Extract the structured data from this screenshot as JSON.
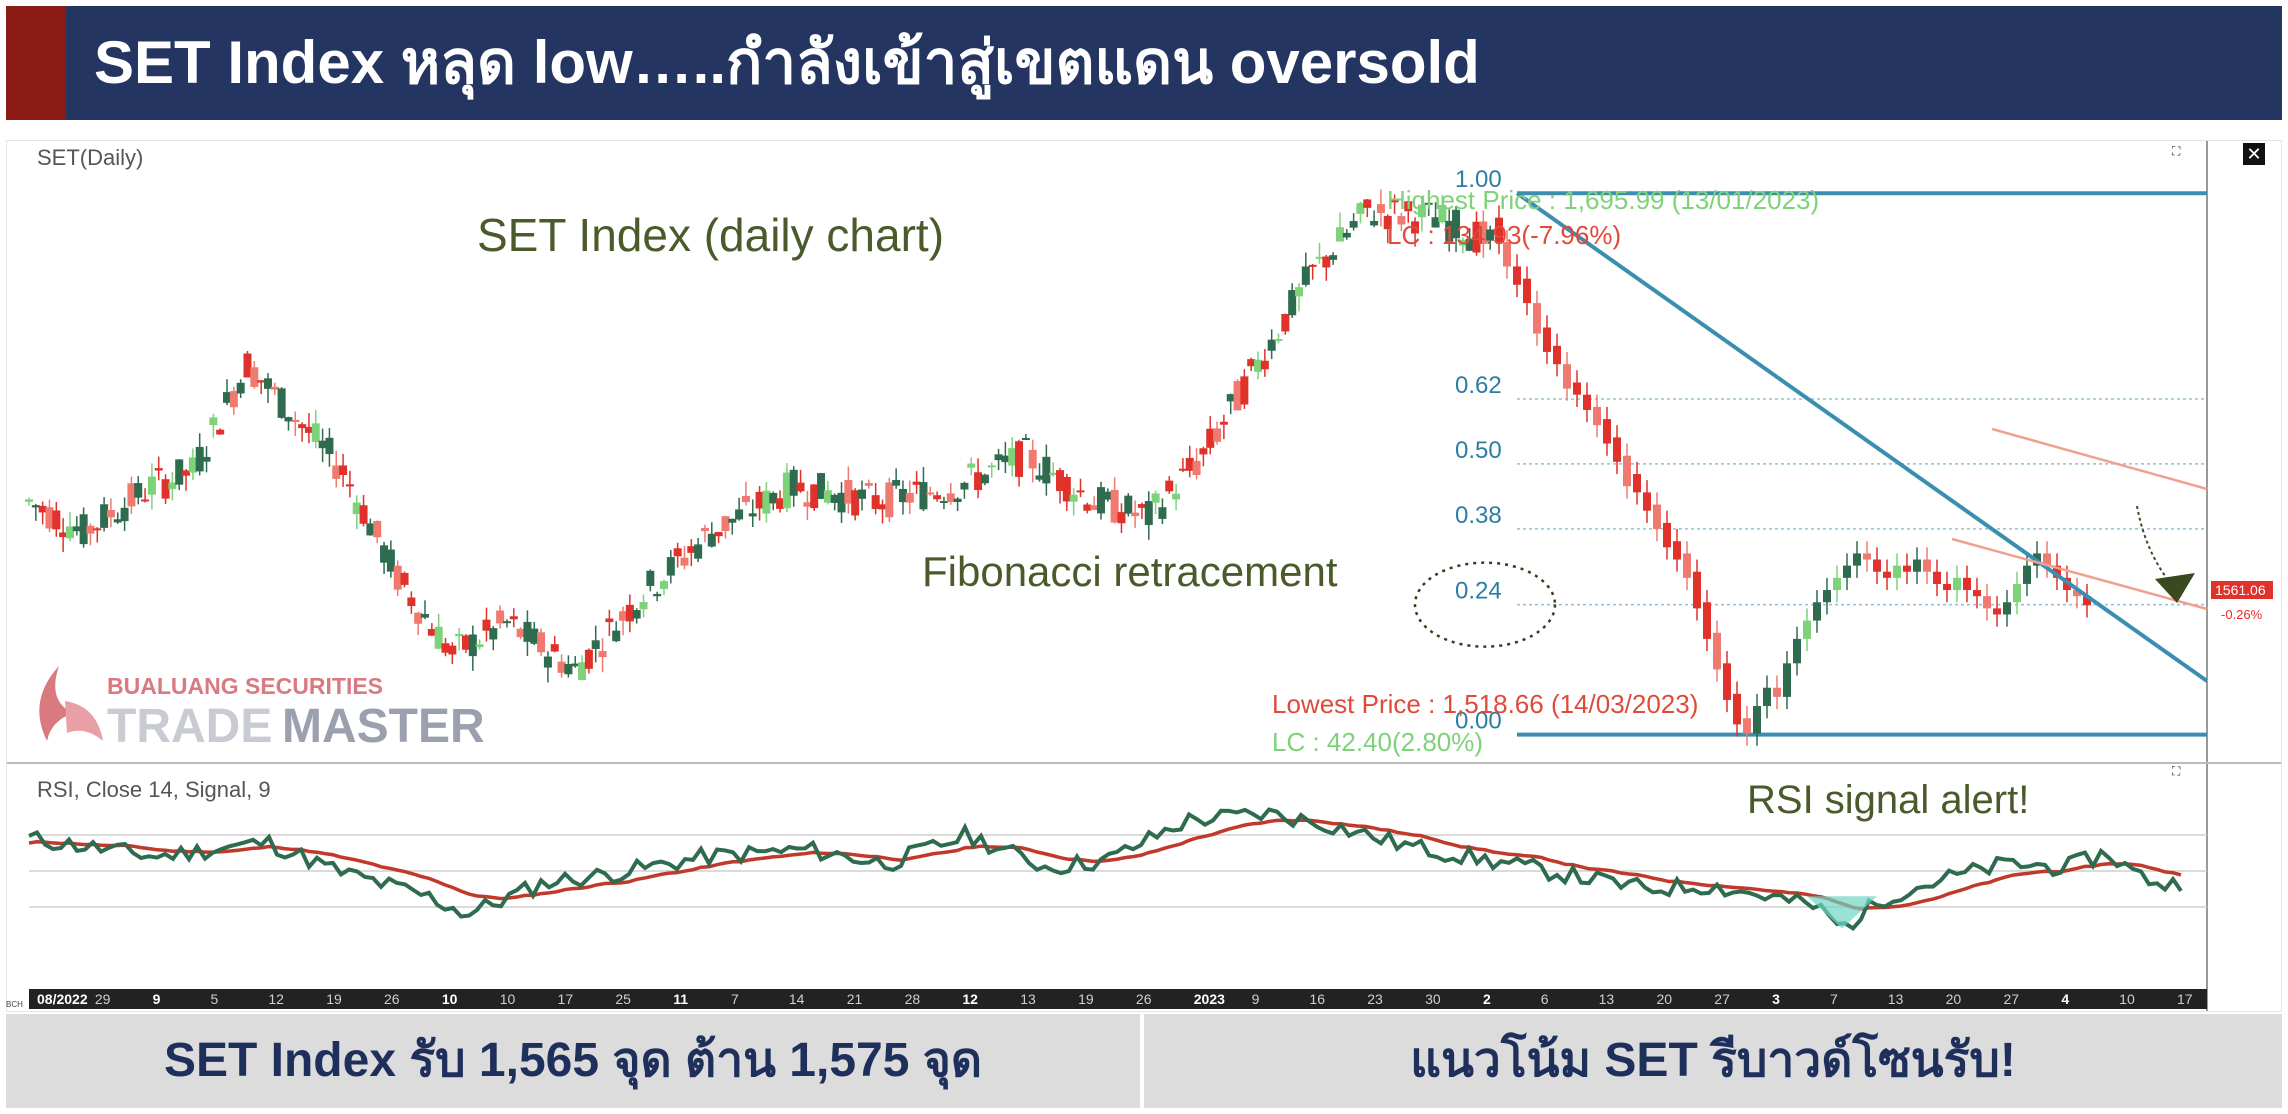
{
  "header": {
    "title": "SET Index หลุด low…..กำลังเข้าสู่เขตแดน oversold"
  },
  "chart": {
    "price_panel_label": "SET(Daily)",
    "rsi_panel_label": "RSI, Close 14, Signal, 9",
    "close_symbol": "✕",
    "expand_symbol": "⛶",
    "bottom_left_tag": "BCH"
  },
  "annotations": {
    "main_label": "SET Index (daily chart)",
    "fib_label": "Fibonacci retracement",
    "rsi_alert": "RSI signal alert!",
    "highest_price": "Highest Price : 1,695.99 (13/01/2023)",
    "highest_lc": "LC : 134.93(-7.96%)",
    "lowest_price": "Lowest Price : 1,518.66 (14/03/2023)",
    "lowest_lc": "LC : 42.40(2.80%)",
    "last_price": "1561.06",
    "last_change": "-0.26%"
  },
  "logo": {
    "line1": "BUALUANG SECURITIES",
    "line2_a": "TRADE",
    "line2_b": "MASTER"
  },
  "footer": {
    "left": "SET Index รับ 1,565 จุด ต้าน 1,575 จุด",
    "right": "แนวโน้ม SET รีบาวด์โซนรับ!"
  },
  "colors": {
    "header_bg": "#233560",
    "header_accent": "#8b1b14",
    "up_candle": "#2e6b4f",
    "up_candle_light": "#7ed27a",
    "down_candle": "#e0312a",
    "down_candle_light": "#f07a70",
    "trendline": "#3a8fb0",
    "channel": "#f0a090",
    "rsi_line": "#2e6b4f",
    "rsi_signal": "#c0392b",
    "fib_text": "#2a7fa0"
  },
  "chart_data": {
    "type": "candlestick",
    "title": "SET Index (daily chart)",
    "x_tick_labels": [
      "08/2022",
      "29",
      "9",
      "5",
      "12",
      "19",
      "26",
      "10",
      "10",
      "17",
      "25",
      "11",
      "7",
      "14",
      "21",
      "28",
      "12",
      "13",
      "19",
      "26",
      "2023",
      "9",
      "16",
      "23",
      "30",
      "2",
      "6",
      "13",
      "20",
      "27",
      "3",
      "7",
      "13",
      "20",
      "27",
      "4",
      "10",
      "17"
    ],
    "fibonacci": [
      {
        "level": "1.00",
        "price": 1695.99
      },
      {
        "level": "0.62",
        "price": null
      },
      {
        "level": "0.50",
        "price": null
      },
      {
        "level": "0.38",
        "price": null
      },
      {
        "level": "0.24",
        "price": null
      },
      {
        "level": "0.00",
        "price": 1518.66
      }
    ],
    "highest_price": 1695.99,
    "lowest_price": 1518.66,
    "last_price": 1561.06,
    "last_change_pct": -0.26,
    "y_range": [
      1510,
      1700
    ],
    "rsi": {
      "period": 14,
      "signal": 9,
      "range": [
        0,
        100
      ]
    },
    "support": 1565,
    "resistance": 1575
  }
}
